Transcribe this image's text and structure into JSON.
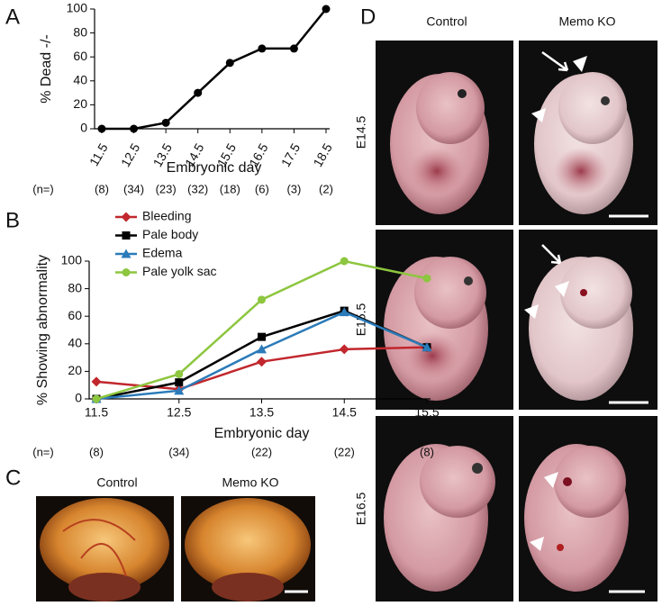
{
  "panel_labels": [
    "A",
    "B",
    "C",
    "D"
  ],
  "chart_data": [
    {
      "type": "line",
      "ylabel": "% Dead -/-",
      "xlabel": "Embryonic day",
      "categories": [
        "11.5",
        "12.5",
        "13.5",
        "14.5",
        "15.5",
        "16.5",
        "17.5",
        "18.5"
      ],
      "values": [
        0,
        0,
        5,
        30,
        55,
        67,
        67,
        100
      ],
      "color": "#000000",
      "marker": "circle",
      "ylim": [
        0,
        100
      ],
      "yticks": [
        0,
        20,
        40,
        60,
        80,
        100
      ],
      "n_label": "(n=)",
      "sample_sizes": [
        "(8)",
        "(34)",
        "(23)",
        "(32)",
        "(18)",
        "(6)",
        "(3)",
        "(2)"
      ]
    },
    {
      "type": "line",
      "ylabel": "% Showing  abnormality",
      "xlabel": "Embryonic day",
      "categories": [
        "11.5",
        "12.5",
        "13.5",
        "14.5",
        "15.5"
      ],
      "series": [
        {
          "name": "Bleeding",
          "color": "#c1272d",
          "marker": "diamond",
          "values": [
            12.5,
            7,
            27,
            36,
            37.5
          ]
        },
        {
          "name": "Pale body",
          "color": "#000000",
          "marker": "square",
          "values": [
            0,
            12,
            45,
            64,
            37.5
          ]
        },
        {
          "name": "Edema",
          "color": "#2b7bb9",
          "marker": "triangle",
          "values": [
            0,
            6,
            36,
            63,
            37.5
          ]
        },
        {
          "name": "Pale yolk sac",
          "color": "#8dc63f",
          "marker": "circle",
          "values": [
            0,
            18,
            72,
            100,
            87.5
          ]
        }
      ],
      "ylim": [
        0,
        100
      ],
      "yticks": [
        0,
        20,
        40,
        60,
        80,
        100
      ],
      "n_label": "(n=)",
      "sample_sizes": [
        "(8)",
        "(34)",
        "(22)",
        "(22)",
        "(8)"
      ]
    }
  ],
  "photos": {
    "C": {
      "columns": [
        "Control",
        "Memo KO"
      ]
    },
    "D": {
      "columns": [
        "Control",
        "Memo KO"
      ],
      "rows": [
        "E14.5",
        "E15.5",
        "E16.5"
      ]
    }
  }
}
